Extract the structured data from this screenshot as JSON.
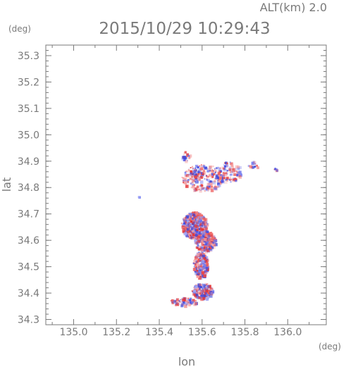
{
  "header": {
    "altitude_label": "ALT(km) 2.0",
    "timestamp": "2015/10/29 10:29:43"
  },
  "chart_data": {
    "type": "heatmap",
    "title": "2015/10/29 10:29:43",
    "subtitle": "ALT(km) 2.0",
    "xlabel": "lon",
    "ylabel": "lat",
    "x_unit": "(deg)",
    "y_unit": "(deg)",
    "xlim": [
      134.87,
      136.18
    ],
    "ylim": [
      34.28,
      35.34
    ],
    "x_ticks": [
      "135.0",
      "135.2",
      "135.4",
      "135.6",
      "135.8",
      "136.0"
    ],
    "y_ticks": [
      "34.3",
      "34.4",
      "34.5",
      "34.6",
      "34.7",
      "34.8",
      "34.9",
      "35.0",
      "35.1",
      "35.2",
      "35.3"
    ],
    "grid": false,
    "colors": {
      "positive": "#e8302e",
      "negative": "#3340e0",
      "axis": "#7a7a7a"
    },
    "clusters": [
      {
        "lon": 135.6,
        "lat": 34.84,
        "r_lon": 0.1,
        "r_lat": 0.05,
        "n": 260
      },
      {
        "lon": 135.72,
        "lat": 34.86,
        "r_lon": 0.06,
        "r_lat": 0.04,
        "n": 110
      },
      {
        "lon": 135.56,
        "lat": 34.66,
        "r_lon": 0.06,
        "r_lat": 0.05,
        "n": 420
      },
      {
        "lon": 135.61,
        "lat": 34.6,
        "r_lon": 0.05,
        "r_lat": 0.04,
        "n": 300
      },
      {
        "lon": 135.59,
        "lat": 34.51,
        "r_lon": 0.035,
        "r_lat": 0.05,
        "n": 260
      },
      {
        "lon": 135.6,
        "lat": 34.41,
        "r_lon": 0.05,
        "r_lat": 0.03,
        "n": 200
      },
      {
        "lon": 135.51,
        "lat": 34.37,
        "r_lon": 0.06,
        "r_lat": 0.015,
        "n": 90
      },
      {
        "lon": 135.84,
        "lat": 34.89,
        "r_lon": 0.03,
        "r_lat": 0.012,
        "n": 16
      },
      {
        "lon": 135.94,
        "lat": 34.87,
        "r_lon": 0.01,
        "r_lat": 0.006,
        "n": 8
      },
      {
        "lon": 135.52,
        "lat": 34.92,
        "r_lon": 0.02,
        "r_lat": 0.02,
        "n": 20
      },
      {
        "lon": 135.3,
        "lat": 34.77,
        "r_lon": 0.004,
        "r_lat": 0.004,
        "n": 3
      }
    ]
  }
}
